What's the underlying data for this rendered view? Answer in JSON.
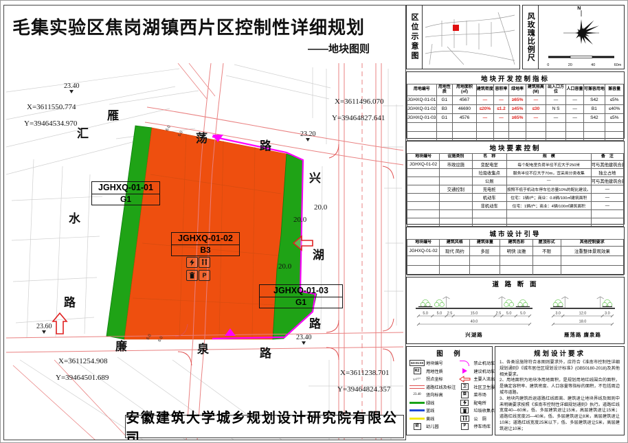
{
  "page": {
    "title": "毛集实验区焦岗湖镇西片区控制性详细规划",
    "subtitle": "——地块图则",
    "company": "安徽建筑大学城乡规划设计研究院有限公司"
  },
  "colors": {
    "parcel_commercial": "#ee4f0f",
    "parcel_green": "#1fa316",
    "boundary_magenta": "#ff00ff",
    "road_line_red": "#e98080",
    "table_accent_red": "#e02520"
  },
  "map": {
    "road_top": [
      "雁",
      "荡",
      "路"
    ],
    "road_left": [
      "汇",
      "水",
      "路"
    ],
    "road_bottom": [
      "廉",
      "泉",
      "路"
    ],
    "road_right": [
      "兴",
      "湖",
      "路"
    ],
    "coords": {
      "tl_x": "X=3611550.774",
      "tl_y": "Y=39464534.970",
      "tr_x": "X=3611496.070",
      "tr_y": "Y=39464827.641",
      "bl_x": "X=3611254.908",
      "bl_y": "Y=39464501.689",
      "br_x": "X=3611238.701",
      "br_y": "Y=39464824.357"
    },
    "elevations": {
      "e1": "23.40",
      "e2": "23.20",
      "e3": "23.60",
      "e4": "23.40"
    },
    "dims": {
      "d1": "20.0",
      "d2": "20.0",
      "d3": "20.0",
      "small": "6.0"
    },
    "parcels": [
      {
        "code": "JGHXQ-01-01",
        "use": "G1"
      },
      {
        "code": "JGHXQ-01-02",
        "use": "B3"
      },
      {
        "code": "JGHXQ-01-03",
        "use": "G1"
      }
    ],
    "icon_parking": "P"
  },
  "panel": {
    "location_title": "区位示意图",
    "windrose_title": "风玫瑰比例尺",
    "north": "N",
    "scale_ticks": [
      "0",
      "20",
      "40",
      "60m"
    ],
    "dev": {
      "title": "地块开发控制指标",
      "headers": [
        "用地编号",
        "用地性质",
        "用地面积(㎡)",
        "建筑密度",
        "容积率",
        "绿地率",
        "建筑限高(M)",
        "出入口方位",
        "人口容量",
        "可兼容用地",
        "兼容量"
      ],
      "rows": [
        [
          "JGHXQ-01-01",
          "G1",
          "4567",
          "—",
          "—",
          "≥65%",
          "—",
          "—",
          "—",
          "S42",
          "≤5%"
        ],
        [
          "JGHXQ-01-02",
          "B3",
          "46690",
          "≤20%",
          "≤1.2",
          "≥45%",
          "≤30",
          "N S",
          "—",
          "B1",
          "≤40%"
        ],
        [
          "JGHXQ-01-03",
          "G1",
          "4576",
          "—",
          "—",
          "≥65%",
          "—",
          "—",
          "—",
          "S42",
          "≤5%"
        ]
      ]
    },
    "elements": {
      "title": "地块要素控制",
      "headers": [
        "地块编号",
        "设施类别",
        "名　称",
        "规　模",
        "备　注"
      ],
      "rows": [
        [
          "JGHXQ-01-02",
          "市政设施",
          "变配电室",
          "每个配电室负荷半径不应大于250米",
          "可与其他建筑合建"
        ],
        [
          "",
          "",
          "垃圾收集点",
          "服务半径不应大于70m，宜采用分类收集",
          "独立占地"
        ],
        [
          "",
          "",
          "公厕",
          "—",
          "可与其他建筑合建"
        ],
        [
          "",
          "交通控制",
          "充电桩",
          "按照不低于机动车停车位总量10%的配比建设。",
          "—"
        ],
        [
          "",
          "",
          "机动车",
          "住宅：1辆/户；商业：0.8辆/100㎡建筑面积",
          "—"
        ],
        [
          "",
          "",
          "非机动车",
          "住宅：1辆/户；商业：4辆/100㎡建筑面积",
          "—"
        ]
      ]
    },
    "design": {
      "title": "城市设计引导",
      "headers": [
        "地块编号",
        "建筑风格",
        "建筑体量",
        "建筑色彩",
        "屋顶形式",
        "其他控制要求"
      ],
      "rows": [
        [
          "JGHXQ-01-02",
          "现代 简约",
          "多层",
          "明快 淡雅",
          "不限",
          "注重整体景观效果"
        ]
      ]
    },
    "road": {
      "title": "道 路 断 面",
      "sections": [
        {
          "dims": [
            "5.0",
            "5.0",
            "2.5",
            "15.0",
            "2.5",
            "5.0",
            "5.0"
          ],
          "total": "40.0",
          "label": "兴湖路"
        },
        {
          "dims": [
            "3.0",
            "12.0",
            "3.0"
          ],
          "total": "18.0",
          "label": "雁荡路 廉泉路"
        }
      ]
    },
    "legend": {
      "title": "图　例",
      "col1": [
        {
          "sym": "code",
          "text": "GX-01-0X",
          "label": "地块编号"
        },
        {
          "sym": "box",
          "text": "R2",
          "label": "用地性质"
        },
        {
          "sym": "coord",
          "text": "X=/Y=",
          "label": "拐点坐标"
        },
        {
          "sym": "redline",
          "text": "",
          "label": "道路红线及标注"
        },
        {
          "sym": "elev",
          "text": "23.40",
          "label": "竖向标高"
        },
        {
          "sym": "gline",
          "text": "",
          "label": "绿线"
        },
        {
          "sym": "bline",
          "text": "",
          "label": "蓝线"
        },
        {
          "sym": "yline",
          "text": "",
          "label": "黄线"
        },
        {
          "sym": "box",
          "text": "幼",
          "label": "幼儿园"
        }
      ],
      "col2": [
        {
          "sym": "arc",
          "text": "",
          "label": "禁止机动车开口段"
        },
        {
          "sym": "tri",
          "text": "",
          "label": "建议机动车出入口"
        },
        {
          "sym": "arrow",
          "text": "",
          "label": "主要人流出入口"
        },
        {
          "sym": "box",
          "text": "卫",
          "label": "社区卫生服务站"
        },
        {
          "sym": "box",
          "text": "菜",
          "label": "菜市场"
        },
        {
          "sym": "bolt",
          "text": "",
          "label": "配电所"
        },
        {
          "sym": "trash",
          "text": "",
          "label": "垃圾收集点"
        },
        {
          "sym": "wc",
          "text": "",
          "label": "公　厕"
        },
        {
          "sym": "box",
          "text": "P",
          "label": "停车场库"
        }
      ]
    },
    "req": {
      "title": "规划设计要求",
      "items": [
        "1、各类设施除符合本图则要求外，应符合《淮南市控制性详细规划通则》《城市居住区规划设计标准》(GB50180-2018)及其他相关要求。",
        "2、用地面积为地块净用地面积，是规划用地红线围合的面积，是确定容积率、建筑密度、人口容量等指标的面积，不包括周边城市道路。",
        "3、地块内建筑后退道路红线距离、建筑退让地块界线及图则中未明确要求按照《淮南市控制性详细规划通则》执行。道路红线宽度40—60米，低、多层建筑退让15米，高层建筑退让15米；道路红线宽度25—40米，低、多层建筑退让8米，高层建筑退让10米；道路红线宽度25米以下，低、多层建筑退让5米，高层建筑退让10米；"
      ]
    }
  }
}
